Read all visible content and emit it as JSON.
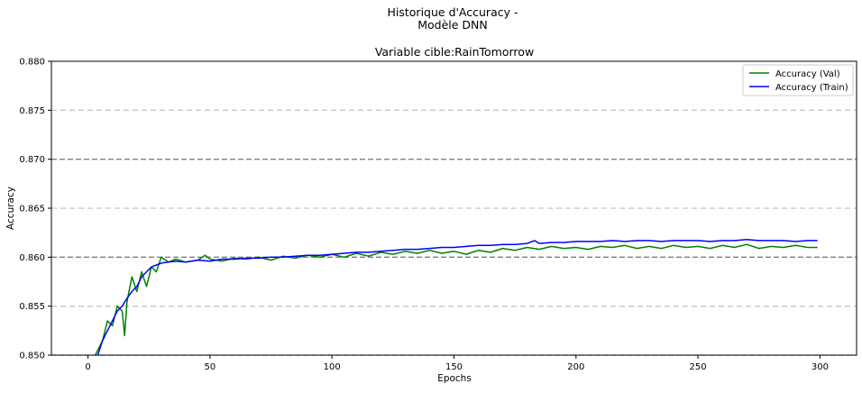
{
  "chart_data": {
    "type": "line",
    "suptitle": [
      "Historique d'Accuracy -",
      "Modèle DNN"
    ],
    "title": "Variable cible:RainTomorrow",
    "xlabel": "Epochs",
    "ylabel": "Accuracy",
    "xlim": [
      -15,
      315
    ],
    "ylim": [
      0.85,
      0.88
    ],
    "xticks": [
      0,
      50,
      100,
      150,
      200,
      250,
      300
    ],
    "yticks": [
      0.85,
      0.855,
      0.86,
      0.865,
      0.87,
      0.875,
      0.88
    ],
    "ytick_labels": [
      "0.850",
      "0.855",
      "0.860",
      "0.865",
      "0.870",
      "0.875",
      "0.880"
    ],
    "major_grid_y": [
      0.85,
      0.86,
      0.87
    ],
    "minor_grid_y": [
      0.855,
      0.865,
      0.875
    ],
    "grid": "horizontal dashed",
    "legend_position": "top-right",
    "series": [
      {
        "name": "Accuracy (Val)",
        "color": "#008000",
        "x": [
          0,
          2,
          4,
          6,
          8,
          10,
          12,
          14,
          15,
          16,
          18,
          20,
          22,
          24,
          26,
          28,
          30,
          33,
          36,
          40,
          45,
          48,
          50,
          55,
          60,
          65,
          70,
          75,
          80,
          85,
          90,
          95,
          100,
          105,
          110,
          115,
          120,
          125,
          130,
          135,
          140,
          145,
          150,
          155,
          160,
          165,
          170,
          175,
          180,
          185,
          190,
          195,
          200,
          205,
          210,
          215,
          220,
          225,
          230,
          235,
          240,
          245,
          250,
          255,
          260,
          265,
          270,
          275,
          280,
          285,
          290,
          295,
          299
        ],
        "y": [
          0.8485,
          0.8495,
          0.8505,
          0.8515,
          0.8535,
          0.853,
          0.855,
          0.8545,
          0.852,
          0.8555,
          0.858,
          0.8565,
          0.8585,
          0.857,
          0.859,
          0.8585,
          0.86,
          0.8595,
          0.8598,
          0.8595,
          0.8597,
          0.8602,
          0.8598,
          0.8596,
          0.8599,
          0.8598,
          0.86,
          0.8597,
          0.8601,
          0.8599,
          0.8602,
          0.86,
          0.8603,
          0.86,
          0.8604,
          0.8601,
          0.8605,
          0.8603,
          0.8606,
          0.8604,
          0.8607,
          0.8604,
          0.8606,
          0.8603,
          0.8607,
          0.8605,
          0.8609,
          0.8607,
          0.861,
          0.8608,
          0.8611,
          0.8609,
          0.861,
          0.8608,
          0.8611,
          0.861,
          0.8612,
          0.8609,
          0.8611,
          0.8609,
          0.8612,
          0.861,
          0.8611,
          0.8609,
          0.8612,
          0.861,
          0.8613,
          0.8609,
          0.8611,
          0.861,
          0.8612,
          0.861,
          0.861
        ]
      },
      {
        "name": "Accuracy (Train)",
        "color": "#0000ff",
        "x": [
          0,
          2,
          4,
          6,
          8,
          10,
          12,
          14,
          16,
          18,
          20,
          22,
          24,
          26,
          28,
          30,
          33,
          36,
          40,
          45,
          50,
          55,
          60,
          65,
          70,
          75,
          80,
          85,
          90,
          95,
          100,
          105,
          110,
          115,
          120,
          125,
          130,
          135,
          140,
          145,
          150,
          155,
          160,
          165,
          170,
          175,
          180,
          183,
          185,
          190,
          195,
          200,
          205,
          210,
          215,
          220,
          225,
          230,
          235,
          240,
          245,
          250,
          255,
          260,
          265,
          270,
          275,
          280,
          285,
          290,
          295,
          299
        ],
        "y": [
          0.8482,
          0.849,
          0.85,
          0.8515,
          0.8525,
          0.8535,
          0.8545,
          0.855,
          0.8558,
          0.8565,
          0.857,
          0.858,
          0.8585,
          0.859,
          0.8592,
          0.8594,
          0.8595,
          0.8596,
          0.8595,
          0.8597,
          0.8596,
          0.8598,
          0.8598,
          0.8599,
          0.8599,
          0.86,
          0.86,
          0.8601,
          0.8602,
          0.8602,
          0.8603,
          0.8604,
          0.8605,
          0.8605,
          0.8606,
          0.8607,
          0.8608,
          0.8608,
          0.8609,
          0.861,
          0.861,
          0.8611,
          0.8612,
          0.8612,
          0.8613,
          0.8613,
          0.8614,
          0.8617,
          0.8614,
          0.8615,
          0.8615,
          0.8616,
          0.8616,
          0.8616,
          0.8617,
          0.8616,
          0.8617,
          0.8617,
          0.8616,
          0.8617,
          0.8617,
          0.8617,
          0.8616,
          0.8617,
          0.8617,
          0.8618,
          0.8617,
          0.8617,
          0.8617,
          0.8616,
          0.8617,
          0.8617
        ]
      }
    ]
  }
}
